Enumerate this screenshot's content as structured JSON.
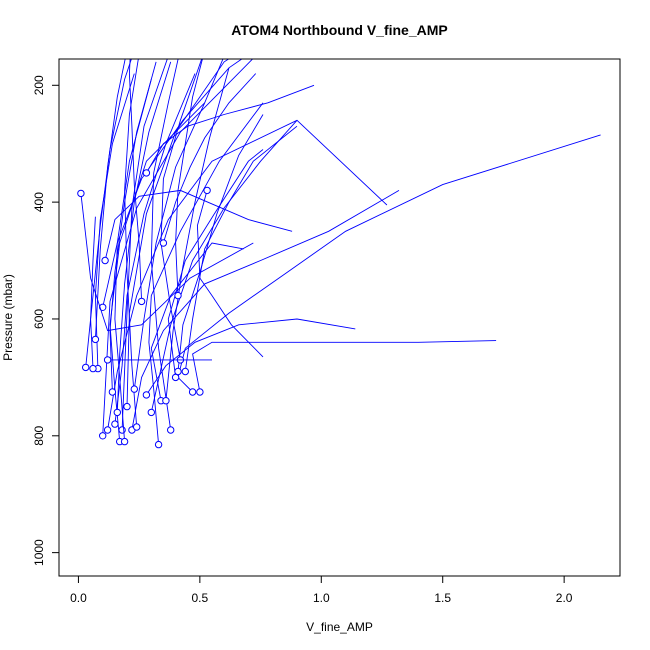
{
  "chart_data": {
    "type": "line",
    "title": "ATOM4 Northbound V_fine_AMP",
    "xlabel": "V_fine_AMP",
    "ylabel": "Pressure (mbar)",
    "xlim": [
      -0.08,
      2.23
    ],
    "ylim": [
      1040,
      155
    ],
    "y_axis_inverted": true,
    "xticks": [
      0.0,
      0.5,
      1.0,
      1.5,
      2.0
    ],
    "xtick_labels": [
      "0.0",
      "0.5",
      "1.0",
      "1.5",
      "2.0"
    ],
    "yticks": [
      200,
      400,
      600,
      800,
      1000
    ],
    "ytick_labels": [
      "200",
      "400",
      "600",
      "800",
      "1000"
    ],
    "grid": false,
    "legend": "none",
    "series_color": "#0000ff",
    "marker": "open-circle",
    "series": [
      {
        "x": [
          0.1,
          0.13,
          0.24,
          0.42,
          0.61,
          0.8
        ],
        "y": [
          800,
          570,
          410,
          280,
          200,
          120
        ]
      },
      {
        "x": [
          0.15,
          0.18,
          0.2,
          0.27,
          0.36,
          0.48
        ],
        "y": [
          780,
          680,
          560,
          420,
          300,
          180
        ]
      },
      {
        "x": [
          0.33,
          0.31,
          0.29,
          0.3,
          0.42,
          0.58,
          0.76
        ],
        "y": [
          815,
          720,
          640,
          560,
          450,
          330,
          230
        ]
      },
      {
        "x": [
          0.22,
          0.26,
          0.35,
          0.52,
          0.75,
          1.03,
          1.32
        ],
        "y": [
          790,
          700,
          620,
          540,
          500,
          450,
          380
        ]
      },
      {
        "x": [
          0.47,
          0.41,
          0.44,
          0.62,
          0.86,
          1.1,
          1.5,
          2.15
        ],
        "y": [
          725,
          700,
          650,
          590,
          520,
          450,
          370,
          285
        ]
      },
      {
        "x": [
          0.5,
          0.47,
          0.55,
          0.78,
          1.1,
          1.4,
          1.72
        ],
        "y": [
          725,
          660,
          640,
          640,
          640,
          640,
          637
        ]
      },
      {
        "x": [
          0.1,
          0.16,
          0.26,
          0.43,
          0.62,
          0.9
        ],
        "y": [
          580,
          470,
          360,
          260,
          170,
          90
        ]
      },
      {
        "x": [
          0.08,
          0.07,
          0.09,
          0.14,
          0.23
        ],
        "y": [
          685,
          560,
          430,
          300,
          180
        ]
      },
      {
        "x": [
          0.17,
          0.15,
          0.13,
          0.17,
          0.28,
          0.52
        ],
        "y": [
          810,
          720,
          610,
          470,
          330,
          230
        ]
      },
      {
        "x": [
          0.4,
          0.37,
          0.44,
          0.56,
          0.7,
          0.76
        ],
        "y": [
          700,
          600,
          500,
          420,
          330,
          310
        ]
      },
      {
        "x": [
          0.41,
          0.43,
          0.5,
          0.57,
          0.66,
          0.76
        ],
        "y": [
          690,
          610,
          520,
          420,
          320,
          250
        ]
      },
      {
        "x": [
          0.34,
          0.3,
          0.38,
          0.55,
          0.68
        ],
        "y": [
          740,
          650,
          560,
          470,
          480
        ]
      },
      {
        "x": [
          0.44,
          0.47,
          0.52,
          0.62,
          0.72,
          0.9
        ],
        "y": [
          690,
          600,
          480,
          400,
          330,
          270
        ]
      },
      {
        "x": [
          0.53,
          0.49,
          0.5,
          0.55,
          0.63,
          0.76
        ],
        "y": [
          380,
          440,
          530,
          560,
          610,
          665
        ]
      },
      {
        "x": [
          0.28,
          0.36,
          0.48,
          0.66,
          0.9,
          1.14
        ],
        "y": [
          730,
          680,
          640,
          610,
          600,
          617
        ]
      },
      {
        "x": [
          0.11,
          0.15,
          0.25,
          0.42,
          0.7,
          0.88
        ],
        "y": [
          500,
          430,
          390,
          380,
          430,
          450
        ]
      },
      {
        "x": [
          0.01,
          0.05,
          0.12,
          0.26,
          0.46,
          0.72
        ],
        "y": [
          385,
          530,
          620,
          610,
          530,
          470
        ]
      },
      {
        "x": [
          0.12,
          0.16,
          0.24,
          0.37,
          0.55,
          0.9,
          1.27
        ],
        "y": [
          790,
          690,
          560,
          430,
          330,
          260,
          405
        ]
      },
      {
        "x": [
          0.2,
          0.21,
          0.28,
          0.4,
          0.6,
          0.9
        ],
        "y": [
          750,
          590,
          420,
          280,
          160,
          80
        ]
      },
      {
        "x": [
          0.18,
          0.2,
          0.22,
          0.27,
          0.37,
          0.56
        ],
        "y": [
          790,
          590,
          410,
          270,
          150,
          60
        ]
      },
      {
        "x": [
          0.3,
          0.38,
          0.47,
          0.6,
          0.75,
          0.9
        ],
        "y": [
          760,
          610,
          500,
          410,
          330,
          260
        ]
      },
      {
        "x": [
          0.03,
          0.06,
          0.09,
          0.13,
          0.19,
          0.27
        ],
        "y": [
          683,
          560,
          440,
          310,
          190,
          90
        ]
      },
      {
        "x": [
          0.19,
          0.17,
          0.15,
          0.16,
          0.21,
          0.3
        ],
        "y": [
          810,
          700,
          600,
          470,
          330,
          190
        ]
      },
      {
        "x": [
          0.06,
          0.05,
          0.06,
          0.07
        ],
        "y": [
          685,
          600,
          500,
          425
        ]
      },
      {
        "x": [
          0.07,
          0.09,
          0.12,
          0.16,
          0.21,
          0.3
        ],
        "y": [
          635,
          480,
          340,
          220,
          120,
          40
        ]
      },
      {
        "x": [
          0.24,
          0.22,
          0.2,
          0.19,
          0.21,
          0.26
        ],
        "y": [
          785,
          680,
          520,
          380,
          250,
          120
        ]
      },
      {
        "x": [
          0.38,
          0.33,
          0.3,
          0.31,
          0.37,
          0.44
        ],
        "y": [
          790,
          650,
          500,
          350,
          230,
          100
        ]
      },
      {
        "x": [
          0.42,
          0.38,
          0.34,
          0.35,
          0.42,
          0.52
        ],
        "y": [
          670,
          580,
          470,
          360,
          260,
          140
        ]
      },
      {
        "x": [
          0.14,
          0.13,
          0.15,
          0.19,
          0.24,
          0.32
        ],
        "y": [
          725,
          620,
          520,
          400,
          280,
          160
        ]
      },
      {
        "x": [
          0.23,
          0.27,
          0.32,
          0.4,
          0.52,
          0.62
        ],
        "y": [
          720,
          600,
          470,
          340,
          230,
          130
        ]
      },
      {
        "x": [
          0.16,
          0.17,
          0.19,
          0.23,
          0.29,
          0.38
        ],
        "y": [
          760,
          660,
          540,
          400,
          280,
          160
        ]
      },
      {
        "x": [
          0.36,
          0.39,
          0.43,
          0.48,
          0.54,
          0.62
        ],
        "y": [
          740,
          620,
          510,
          400,
          290,
          170
        ]
      },
      {
        "x": [
          0.12,
          0.2,
          0.29,
          0.38,
          0.46,
          0.55
        ],
        "y": [
          670,
          670,
          670,
          670,
          670,
          670
        ]
      },
      {
        "x": [
          0.35,
          0.4,
          0.46,
          0.52,
          0.62,
          0.73
        ],
        "y": [
          470,
          400,
          340,
          290,
          230,
          180
        ]
      },
      {
        "x": [
          0.26,
          0.25,
          0.23,
          0.22,
          0.21,
          0.22
        ],
        "y": [
          570,
          470,
          370,
          270,
          180,
          90
        ]
      },
      {
        "x": [
          0.41,
          0.4,
          0.41,
          0.44,
          0.47,
          0.52
        ],
        "y": [
          560,
          470,
          380,
          300,
          220,
          140
        ]
      },
      {
        "x": [
          0.28,
          0.35,
          0.45,
          0.6,
          0.78,
          0.97
        ],
        "y": [
          350,
          300,
          270,
          250,
          230,
          200
        ]
      }
    ]
  }
}
